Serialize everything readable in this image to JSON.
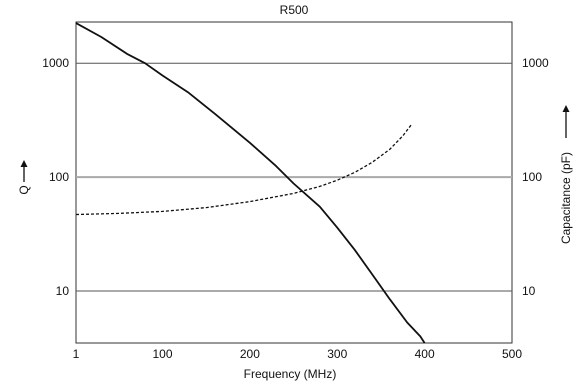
{
  "chart_data": {
    "type": "line",
    "title": "R500",
    "xlabel": "Frequency (MHz)",
    "ylabel_left": "Q",
    "ylabel_right": "Capacitance (pF)",
    "x_ticks": [
      "1",
      "100",
      "200",
      "300",
      "400",
      "500"
    ],
    "xlim": [
      1,
      500
    ],
    "y_scale": "log",
    "y_ticks": [
      "10",
      "100",
      "1000"
    ],
    "ylim": [
      3.5,
      2300
    ],
    "grid": "horizontal",
    "series": [
      {
        "line_style": "solid",
        "axis": "left",
        "x": [
          1,
          30,
          60,
          80,
          100,
          130,
          160,
          200,
          230,
          250,
          280,
          300,
          320,
          340,
          360,
          380,
          395,
          400
        ],
        "y": [
          2250,
          1700,
          1200,
          1000,
          780,
          550,
          360,
          200,
          125,
          88,
          55,
          36,
          23,
          14,
          8.5,
          5.3,
          4.0,
          3.5
        ]
      },
      {
        "line_style": "dashed",
        "axis": "right",
        "x": [
          1,
          50,
          100,
          150,
          200,
          250,
          280,
          300,
          320,
          340,
          360,
          375,
          385
        ],
        "y": [
          47,
          48,
          50,
          54,
          61,
          72,
          83,
          94,
          110,
          135,
          175,
          230,
          290
        ]
      }
    ]
  }
}
